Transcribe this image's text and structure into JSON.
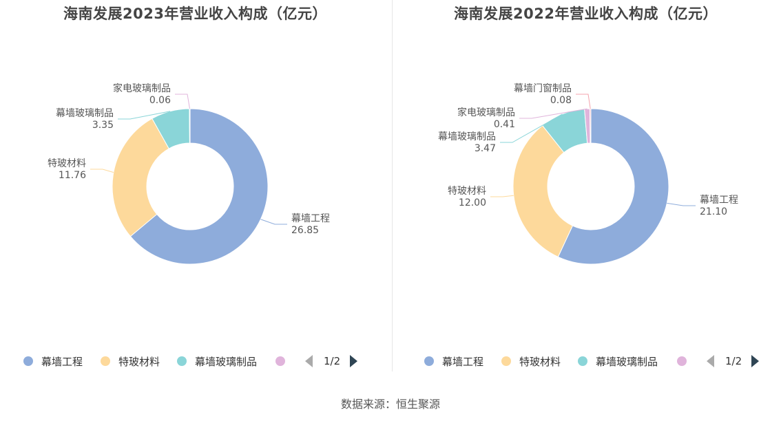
{
  "source": "数据来源：恒生聚源",
  "chart_data": [
    {
      "type": "pie",
      "title": "海南发展2023年营业收入构成（亿元）",
      "categories": [
        "幕墙工程",
        "特玻材料",
        "幕墙玻璃制品",
        "家电玻璃制品"
      ],
      "values": [
        26.85,
        11.76,
        3.35,
        0.06
      ],
      "value_labels": [
        "26.85",
        "11.76",
        "3.35",
        "0.06"
      ],
      "colors": [
        "#8eacdb",
        "#fdd99b",
        "#8ad5d8",
        "#e0b4db"
      ],
      "legend": {
        "position": "bottom",
        "items": [
          "幕墙工程",
          "特玻材料",
          "幕墙玻璃制品",
          ""
        ],
        "page": "1/2"
      }
    },
    {
      "type": "pie",
      "title": "海南发展2022年营业收入构成（亿元）",
      "categories": [
        "幕墙工程",
        "特玻材料",
        "幕墙玻璃制品",
        "家电玻璃制品",
        "幕墙门窗制品"
      ],
      "values": [
        21.1,
        12.0,
        3.47,
        0.41,
        0.08
      ],
      "value_labels": [
        "21.10",
        "12.00",
        "3.47",
        "0.41",
        "0.08"
      ],
      "colors": [
        "#8eacdb",
        "#fdd99b",
        "#8ad5d8",
        "#e0b4db",
        "#f4a3ad"
      ],
      "legend": {
        "position": "bottom",
        "items": [
          "幕墙工程",
          "特玻材料",
          "幕墙玻璃制品",
          ""
        ],
        "page": "1/2"
      }
    }
  ]
}
